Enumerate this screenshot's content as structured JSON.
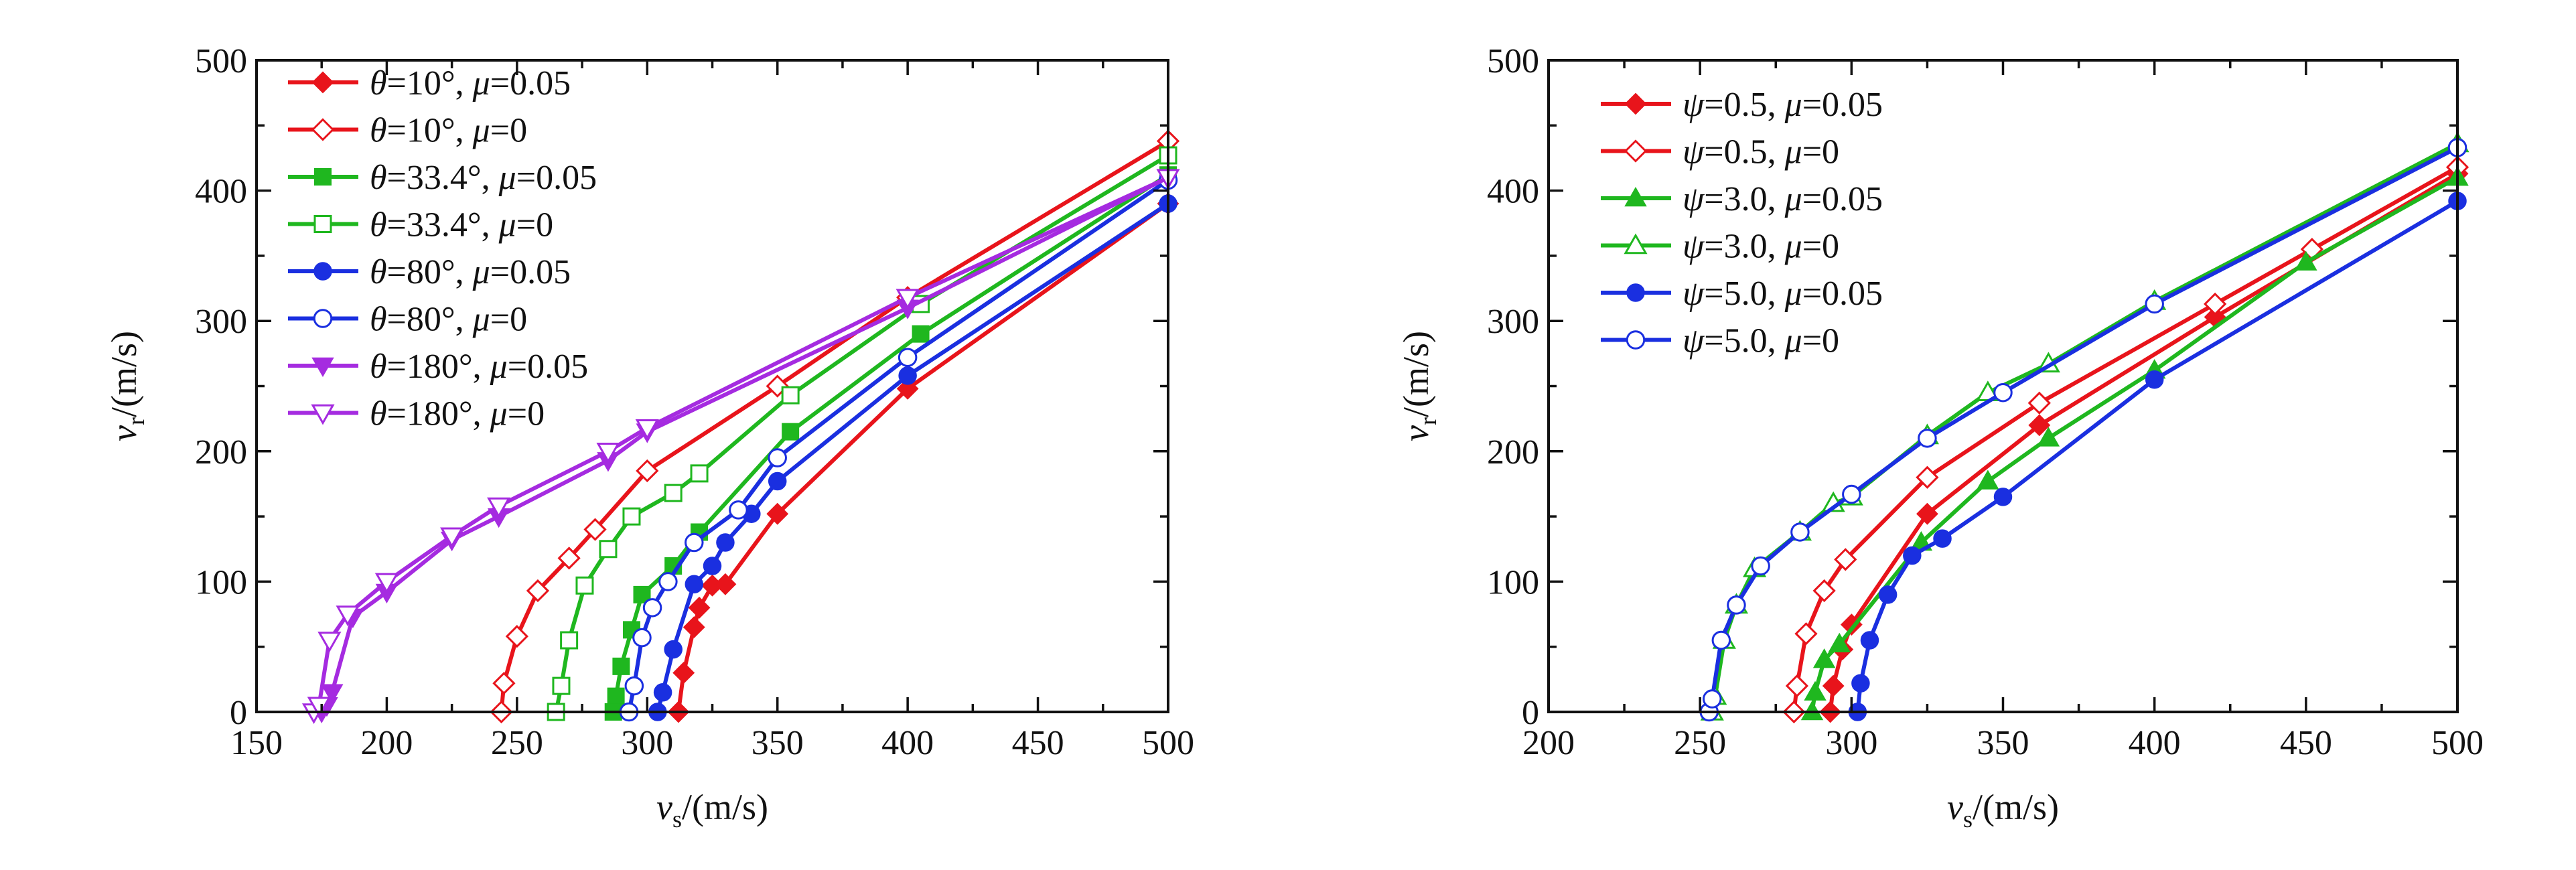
{
  "chart_data": [
    {
      "type": "line",
      "xlabel": "v_s/(m/s)",
      "xlabel_main": "v",
      "xlabel_sub": "s",
      "xlabel_unit": "/(m/s)",
      "ylabel": "v_r/(m/s)",
      "ylabel_main": "v",
      "ylabel_sub": "r",
      "ylabel_unit": "/(m/s)",
      "xlim": [
        150,
        500
      ],
      "ylim": [
        0,
        500
      ],
      "xticks": [
        150,
        200,
        250,
        300,
        350,
        400,
        450,
        500
      ],
      "yticks": [
        0,
        100,
        200,
        300,
        400,
        500
      ],
      "grid": false,
      "legend_position": "top-left",
      "series": [
        {
          "name": "θ=10°, μ=0.05",
          "param": "θ",
          "param_value": "10°",
          "mu": "0.05",
          "color": "#e8141b",
          "marker": "diamond",
          "filled": true,
          "x": [
            312,
            314,
            318,
            320,
            325,
            330,
            350,
            400,
            500
          ],
          "y": [
            0,
            30,
            65,
            80,
            97,
            98,
            152,
            248,
            390
          ]
        },
        {
          "name": "θ=10°, μ=0",
          "param": "θ",
          "param_value": "10°",
          "mu": "0",
          "color": "#e8141b",
          "marker": "diamond",
          "filled": false,
          "x": [
            244,
            245,
            250,
            258,
            270,
            280,
            300,
            350,
            400,
            500
          ],
          "y": [
            0,
            22,
            58,
            93,
            118,
            140,
            185,
            250,
            318,
            438
          ]
        },
        {
          "name": "θ=33.4°, μ=0.05",
          "param": "θ",
          "param_value": "33.4°",
          "mu": "0.05",
          "color": "#1fb71f",
          "marker": "square",
          "filled": true,
          "x": [
            287,
            288,
            290,
            294,
            298,
            310,
            320,
            355,
            405,
            500
          ],
          "y": [
            0,
            12,
            35,
            63,
            90,
            112,
            138,
            215,
            290,
            412
          ]
        },
        {
          "name": "θ=33.4°, μ=0",
          "param": "θ",
          "param_value": "33.4°",
          "mu": "0",
          "color": "#1fb71f",
          "marker": "square",
          "filled": false,
          "x": [
            265,
            267,
            270,
            276,
            285,
            294,
            310,
            320,
            355,
            405,
            500
          ],
          "y": [
            0,
            20,
            55,
            97,
            125,
            150,
            168,
            183,
            243,
            313,
            427
          ]
        },
        {
          "name": "θ=80°, μ=0.05",
          "param": "θ",
          "param_value": "80°",
          "mu": "0.05",
          "color": "#1a2fe0",
          "marker": "circle",
          "filled": true,
          "x": [
            304,
            306,
            310,
            318,
            325,
            330,
            340,
            350,
            400,
            500
          ],
          "y": [
            0,
            15,
            48,
            98,
            112,
            130,
            152,
            177,
            258,
            390
          ]
        },
        {
          "name": "θ=80°, μ=0",
          "param": "θ",
          "param_value": "80°",
          "mu": "0",
          "color": "#1a2fe0",
          "marker": "circle",
          "filled": false,
          "x": [
            293,
            295,
            298,
            302,
            308,
            318,
            335,
            350,
            400,
            500
          ],
          "y": [
            0,
            20,
            57,
            80,
            100,
            130,
            155,
            195,
            272,
            408
          ]
        },
        {
          "name": "θ=180°, μ=0.05",
          "param": "θ",
          "param_value": "180°",
          "mu": "0.05",
          "color": "#a52be0",
          "marker": "triangle-down",
          "filled": true,
          "x": [
            175,
            177,
            179,
            187,
            200,
            225,
            243,
            285,
            300,
            400,
            500
          ],
          "y": [
            0,
            5,
            15,
            73,
            92,
            132,
            150,
            193,
            215,
            310,
            410
          ]
        },
        {
          "name": "θ=180°, μ=0",
          "param": "θ",
          "param_value": "180°",
          "mu": "0",
          "color": "#a52be0",
          "marker": "triangle-down",
          "filled": false,
          "x": [
            172,
            174,
            178,
            185,
            200,
            225,
            243,
            285,
            300,
            400,
            500
          ],
          "y": [
            0,
            5,
            55,
            75,
            100,
            135,
            158,
            200,
            218,
            318,
            410
          ]
        }
      ]
    },
    {
      "type": "line",
      "xlabel": "v_s/(m/s)",
      "xlabel_main": "v",
      "xlabel_sub": "s",
      "xlabel_unit": "/(m/s)",
      "ylabel": "v_r/(m/s)",
      "ylabel_main": "v",
      "ylabel_sub": "r",
      "ylabel_unit": "/(m/s)",
      "xlim": [
        200,
        500
      ],
      "ylim": [
        0,
        500
      ],
      "xticks": [
        200,
        250,
        300,
        350,
        400,
        450,
        500
      ],
      "yticks": [
        0,
        100,
        200,
        300,
        400,
        500
      ],
      "grid": false,
      "legend_position": "top-left",
      "series": [
        {
          "name": "ψ=0.5, μ=0.05",
          "param": "ψ",
          "param_value": "0.5",
          "mu": "0.05",
          "color": "#e8141b",
          "marker": "diamond",
          "filled": true,
          "x": [
            293,
            294,
            297,
            300,
            325,
            362,
            420,
            500
          ],
          "y": [
            0,
            20,
            48,
            67,
            152,
            220,
            303,
            413
          ]
        },
        {
          "name": "ψ=0.5, μ=0",
          "param": "ψ",
          "param_value": "0.5",
          "mu": "0",
          "color": "#e8141b",
          "marker": "diamond",
          "filled": false,
          "x": [
            281,
            282,
            285,
            291,
            298,
            325,
            362,
            420,
            452,
            500
          ],
          "y": [
            0,
            20,
            60,
            93,
            117,
            180,
            237,
            313,
            355,
            418
          ]
        },
        {
          "name": "ψ=3.0, μ=0.05",
          "param": "ψ",
          "param_value": "3.0",
          "mu": "0.05",
          "color": "#1fb71f",
          "marker": "triangle",
          "filled": true,
          "x": [
            287,
            288,
            291,
            296,
            323,
            345,
            365,
            400,
            450,
            500
          ],
          "y": [
            0,
            15,
            40,
            52,
            130,
            177,
            210,
            262,
            345,
            410
          ]
        },
        {
          "name": "ψ=3.0, μ=0",
          "param": "ψ",
          "param_value": "3.0",
          "mu": "0",
          "color": "#1fb71f",
          "marker": "triangle",
          "filled": false,
          "x": [
            254,
            255,
            258,
            262,
            268,
            283,
            294,
            300,
            325,
            345,
            365,
            400,
            500
          ],
          "y": [
            0,
            12,
            55,
            82,
            110,
            138,
            160,
            165,
            212,
            245,
            267,
            315,
            436
          ]
        },
        {
          "name": "ψ=5.0, μ=0.05",
          "param": "ψ",
          "param_value": "5.0",
          "mu": "0.05",
          "color": "#1a2fe0",
          "marker": "circle",
          "filled": true,
          "x": [
            302,
            303,
            306,
            312,
            320,
            330,
            350,
            400,
            500
          ],
          "y": [
            0,
            22,
            55,
            90,
            120,
            133,
            165,
            255,
            392
          ]
        },
        {
          "name": "ψ=5.0, μ=0",
          "param": "ψ",
          "param_value": "5.0",
          "mu": "0",
          "color": "#1a2fe0",
          "marker": "circle",
          "filled": false,
          "x": [
            253,
            254,
            257,
            262,
            270,
            283,
            300,
            325,
            350,
            400,
            500
          ],
          "y": [
            0,
            10,
            55,
            82,
            112,
            138,
            167,
            210,
            245,
            313,
            433
          ]
        }
      ]
    }
  ]
}
